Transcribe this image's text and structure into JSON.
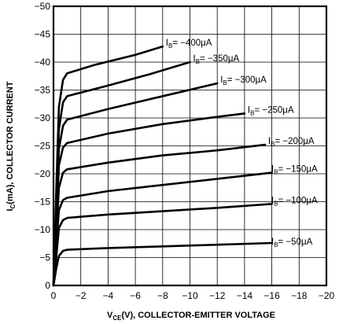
{
  "chart_data": {
    "type": "line",
    "title": "",
    "xlabel": {
      "main": "V",
      "sub": "CE",
      "rest": "(V), COLLECTOR-EMITTER VOLTAGE"
    },
    "ylabel": {
      "main": "I",
      "sub": "C",
      "rest": "(mA), COLLECTOR CURRENT"
    },
    "xlim": [
      0,
      -20
    ],
    "ylim": [
      0,
      -50
    ],
    "grid": true,
    "x_ticks": [
      "0",
      "−2",
      "−4",
      "−6",
      "−8",
      "−10",
      "−12",
      "−14",
      "−16",
      "−18",
      "−20"
    ],
    "y_ticks": [
      "0",
      "−5",
      "−10",
      "−15",
      "−20",
      "−25",
      "−30",
      "−35",
      "−40",
      "−45",
      "−50"
    ],
    "series": [
      {
        "name": "I_B = −50μA",
        "label": {
          "pre": "I",
          "sub": "B",
          "post": "= −50μA"
        },
        "points": [
          [
            0,
            0
          ],
          [
            -0.2,
            -3
          ],
          [
            -0.4,
            -5.3
          ],
          [
            -0.7,
            -6.2
          ],
          [
            -1,
            -6.4
          ],
          [
            -4,
            -6.7
          ],
          [
            -8,
            -7.0
          ],
          [
            -12,
            -7.3
          ],
          [
            -16,
            -7.6
          ]
        ]
      },
      {
        "name": "I_B = −100μA",
        "label": {
          "pre": "I",
          "sub": "B",
          "post": "= −100μA"
        },
        "points": [
          [
            0,
            0
          ],
          [
            -0.2,
            -5
          ],
          [
            -0.4,
            -10.3
          ],
          [
            -0.7,
            -11.7
          ],
          [
            -1,
            -12.1
          ],
          [
            -4,
            -12.7
          ],
          [
            -8,
            -13.3
          ],
          [
            -12,
            -13.9
          ],
          [
            -16,
            -14.6
          ]
        ]
      },
      {
        "name": "I_B = −150μA",
        "label": {
          "pre": "I",
          "sub": "B",
          "post": "= −150μA"
        },
        "points": [
          [
            0,
            0
          ],
          [
            -0.2,
            -7
          ],
          [
            -0.4,
            -13.5
          ],
          [
            -0.7,
            -15.3
          ],
          [
            -1,
            -15.7
          ],
          [
            -4,
            -16.9
          ],
          [
            -8,
            -18.0
          ],
          [
            -12,
            -19.1
          ],
          [
            -16,
            -20.2
          ]
        ]
      },
      {
        "name": "I_B = −200μA",
        "label": {
          "pre": "I",
          "sub": "B",
          "post": "= −200μA"
        },
        "points": [
          [
            0,
            0
          ],
          [
            -0.2,
            -9
          ],
          [
            -0.4,
            -17.5
          ],
          [
            -0.7,
            -20.2
          ],
          [
            -1,
            -20.8
          ],
          [
            -4,
            -22.0
          ],
          [
            -8,
            -23.3
          ],
          [
            -12,
            -24.2
          ],
          [
            -15.5,
            -25.2
          ]
        ]
      },
      {
        "name": "I_B = −250μA",
        "label": {
          "pre": "I",
          "sub": "B",
          "post": "= −250μA"
        },
        "points": [
          [
            0,
            0
          ],
          [
            -0.2,
            -11
          ],
          [
            -0.4,
            -21.5
          ],
          [
            -0.7,
            -24.7
          ],
          [
            -1,
            -25.5
          ],
          [
            -4,
            -27.2
          ],
          [
            -8,
            -28.9
          ],
          [
            -12,
            -30.2
          ],
          [
            -14,
            -30.8
          ]
        ]
      },
      {
        "name": "I_B = −300μA",
        "label": {
          "pre": "I",
          "sub": "B",
          "post": "= −300μA"
        },
        "points": [
          [
            0,
            0
          ],
          [
            -0.2,
            -13
          ],
          [
            -0.4,
            -24.5
          ],
          [
            -0.7,
            -28.6
          ],
          [
            -1,
            -29.7
          ],
          [
            -4,
            -31.6
          ],
          [
            -8,
            -33.9
          ],
          [
            -12,
            -36.2
          ]
        ]
      },
      {
        "name": "I_B = −350μA",
        "label": {
          "pre": "I",
          "sub": "B",
          "post": "= −350μA"
        },
        "points": [
          [
            0,
            0
          ],
          [
            -0.2,
            -15
          ],
          [
            -0.4,
            -28
          ],
          [
            -0.7,
            -32.8
          ],
          [
            -1,
            -33.9
          ],
          [
            -4,
            -35.8
          ],
          [
            -7,
            -37.8
          ],
          [
            -10,
            -40.0
          ]
        ]
      },
      {
        "name": "I_B = −400μA",
        "label": {
          "pre": "I",
          "sub": "B",
          "post": "= −400μA"
        },
        "points": [
          [
            0,
            0
          ],
          [
            -0.2,
            -17
          ],
          [
            -0.4,
            -32
          ],
          [
            -0.7,
            -36.8
          ],
          [
            -1,
            -38.0
          ],
          [
            -3,
            -39.5
          ],
          [
            -6,
            -41.3
          ],
          [
            -8,
            -42.8
          ]
        ]
      }
    ]
  }
}
